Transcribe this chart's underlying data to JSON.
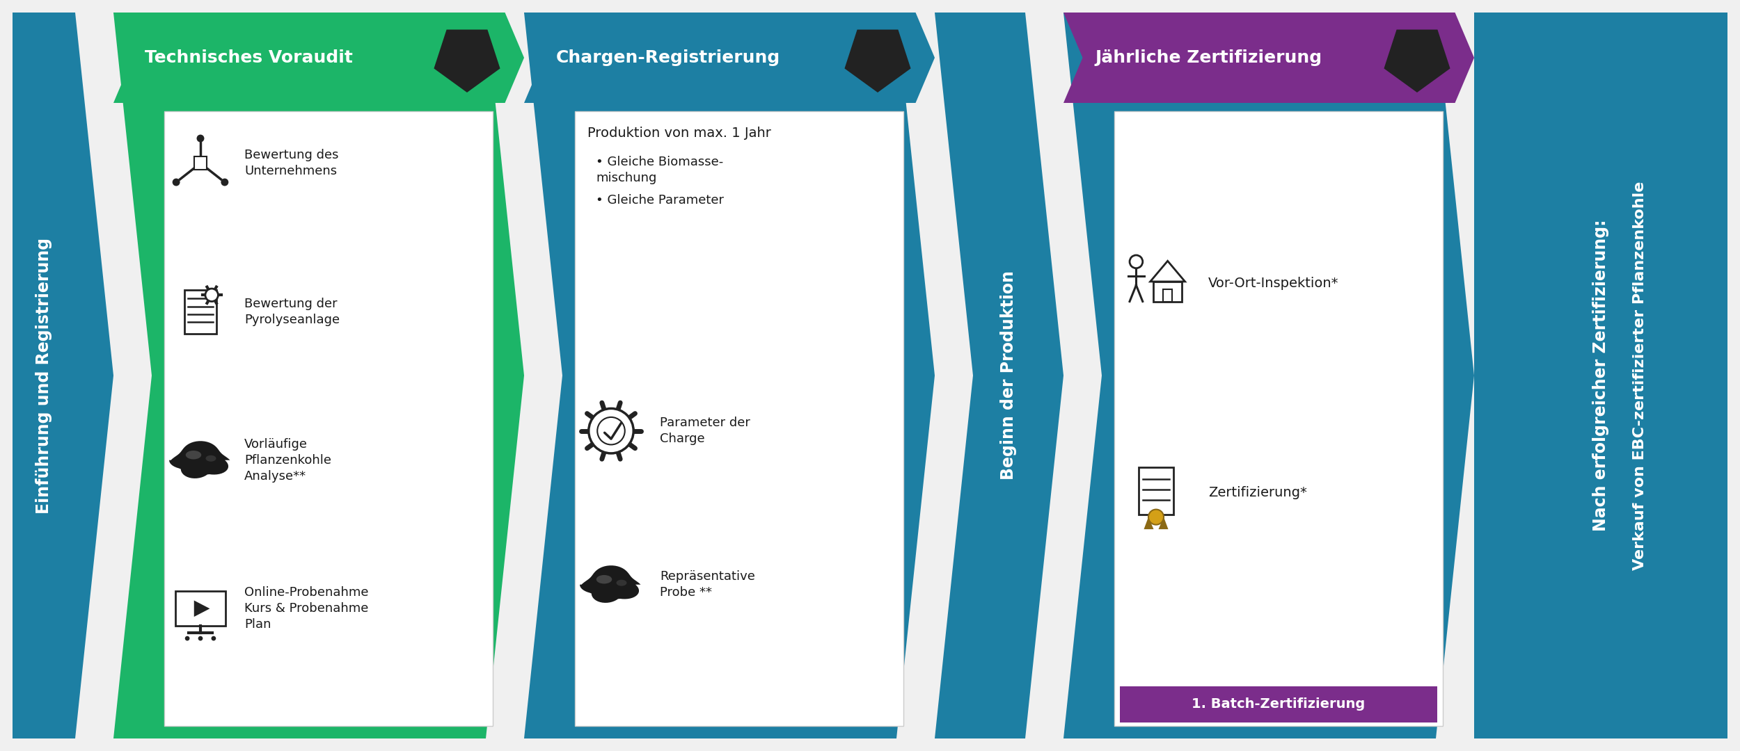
{
  "bg_color": "#f0f0f0",
  "col1_color": "#1d7fa3",
  "col2_color": "#1cb568",
  "col3_color": "#1d7fa3",
  "col4_color": "#1d7fa3",
  "col5_body_color": "#1d7fa3",
  "col5_hdr_color": "#7b2d8b",
  "col6_color": "#1d7fa3",
  "col1_label": "Einführung und Registrierung",
  "col2_label": "Technisches Voraudit",
  "col3_label": "Chargen-Registrierung",
  "col4_label": "Beginn der Produktion",
  "col5_label": "Jährliche Zertifizierung",
  "col6_line1": "Nach erfolgreicher Zertifizierung:",
  "col6_line2": "Verkauf von EBC-zertifizierter Pflanzenkohle",
  "col2_items": [
    "Bewertung des\nUnternehmens",
    "Bewertung der\nPyrolyseanlage",
    "Vorläufige\nPflanzenkohle\nAnalyse**",
    "Online-Probenahme\nKurs & Probenahme\nPlan"
  ],
  "col3_text_top": "Produktion von max. 1 Jahr",
  "col3_bullets": [
    "Gleiche Biomasse-\nmischung",
    "Gleiche Parameter"
  ],
  "col3_items": [
    "Parameter der\nCharge",
    "Repräsentative\nProbe **"
  ],
  "col5_items": [
    "Vor-Ort-Inspektion*",
    "Zertifizierung*"
  ],
  "col5_badge": "1. Batch-Zertifizierung",
  "dark_pent_color": "#222222",
  "badge_color": "#7b2d8b",
  "icon_color": "#222222",
  "white": "#ffffff",
  "text_dark": "#1a1a1a",
  "title_fs": 18,
  "item_fs": 13,
  "label_fs": 17,
  "badge_fs": 14
}
